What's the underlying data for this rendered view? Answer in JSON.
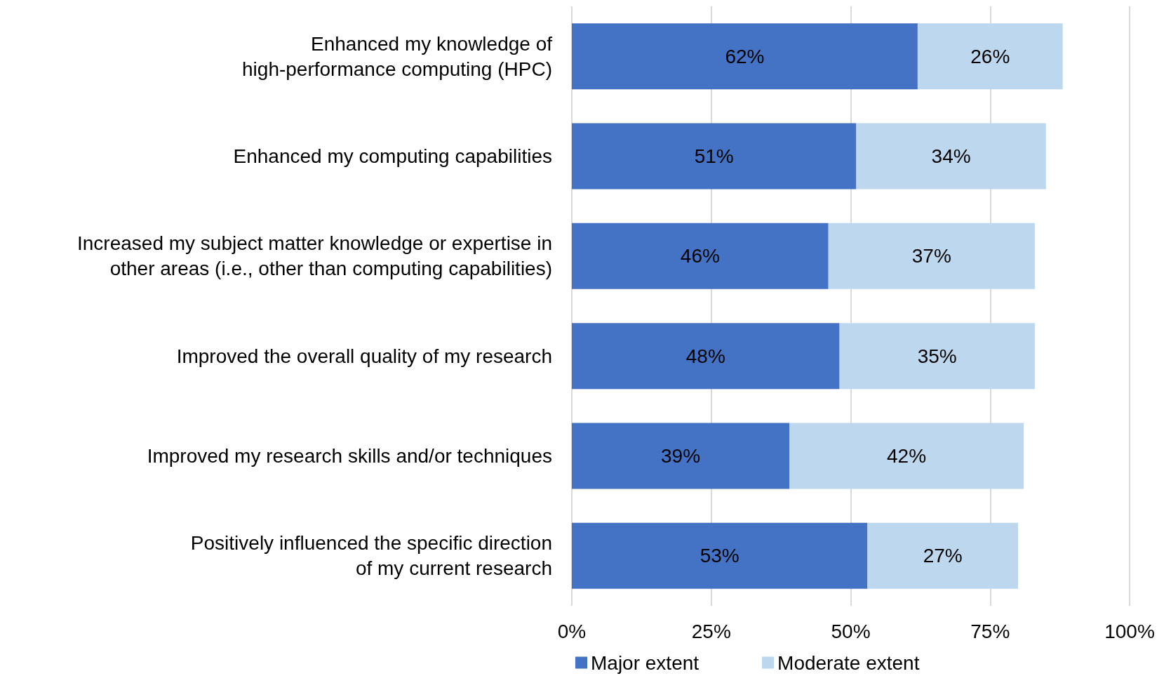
{
  "chart_data": {
    "type": "bar",
    "orientation": "horizontal",
    "stacked": true,
    "categories": [
      "Enhanced my knowledge of\nhigh-performance computing (HPC)",
      "Enhanced my computing capabilities",
      "Increased my subject matter knowledge or expertise in\nother areas (i.e., other than computing capabilities)",
      "Improved the overall quality of my research",
      "Improved my research skills and/or techniques",
      "Positively influenced the specific direction\nof my current research"
    ],
    "series": [
      {
        "name": "Major extent",
        "color": "#4472c4",
        "values": [
          62,
          51,
          46,
          48,
          39,
          53
        ],
        "value_labels": [
          "62%",
          "51%",
          "46%",
          "48%",
          "39%",
          "53%"
        ]
      },
      {
        "name": "Moderate extent",
        "color": "#bdd7ee",
        "values": [
          26,
          34,
          37,
          35,
          42,
          27
        ],
        "value_labels": [
          "26%",
          "34%",
          "37%",
          "35%",
          "42%",
          "27%"
        ]
      }
    ],
    "xlim": [
      0,
      100
    ],
    "xticks": [
      {
        "value": 0,
        "label": "0%"
      },
      {
        "value": 25,
        "label": "25%"
      },
      {
        "value": 50,
        "label": "50%"
      },
      {
        "value": 75,
        "label": "75%"
      },
      {
        "value": 100,
        "label": "100%"
      }
    ],
    "grid": "x",
    "legend": "bottom"
  }
}
